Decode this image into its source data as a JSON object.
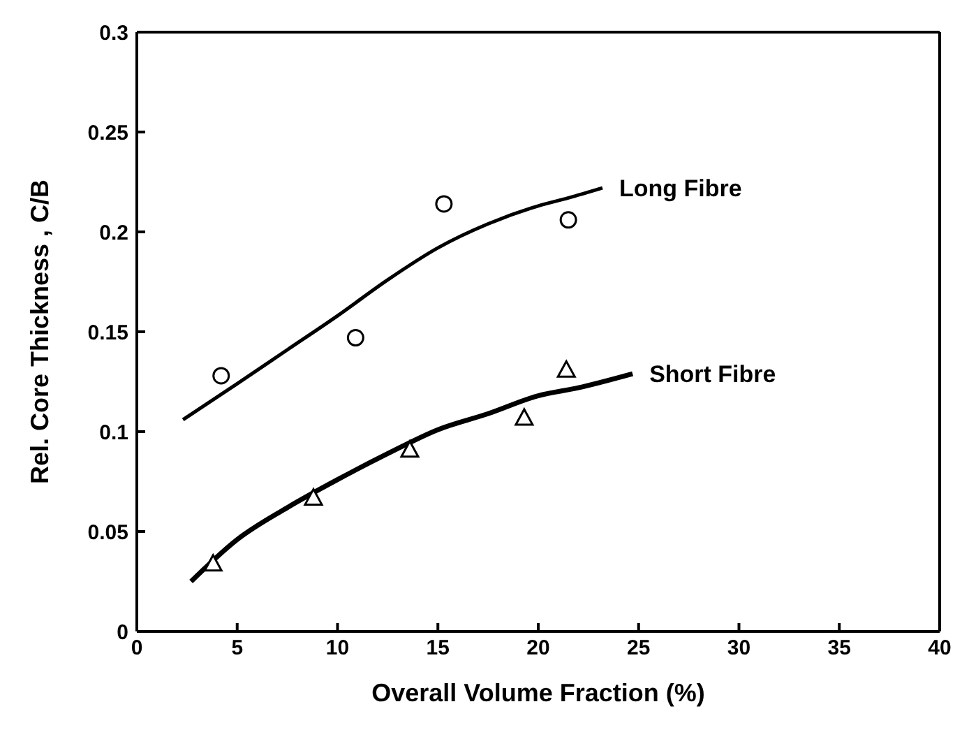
{
  "chart_data": {
    "type": "line",
    "xlabel": "Overall Volume Fraction (%)",
    "ylabel": "Rel. Core Thickness , C/B",
    "xlim": [
      0,
      40
    ],
    "xticks": [
      0,
      5,
      10,
      15,
      20,
      25,
      30,
      35,
      40
    ],
    "ylim": [
      0,
      0.3
    ],
    "yticks": [
      0,
      0.05,
      0.1,
      0.15,
      0.2,
      0.25,
      0.3
    ],
    "series": [
      {
        "name": "Long Fibre",
        "color": "#000000",
        "x": [
          2.3,
          5,
          7.5,
          10,
          12.5,
          15,
          17.5,
          20,
          21.5,
          23.2
        ],
        "values": [
          0.106,
          0.124,
          0.141,
          0.158,
          0.176,
          0.192,
          0.204,
          0.213,
          0.217,
          0.222
        ]
      },
      {
        "type": "scatter",
        "marker": "circle",
        "color": "#000000",
        "x": [
          4.2,
          10.9,
          15.3,
          21.5
        ],
        "values": [
          0.128,
          0.147,
          0.214,
          0.206
        ]
      },
      {
        "name": "Short Fibre",
        "color": "#000000",
        "x": [
          2.7,
          5,
          7.5,
          10,
          12.5,
          15,
          17.5,
          20,
          22,
          24.7
        ],
        "values": [
          0.025,
          0.046,
          0.062,
          0.076,
          0.089,
          0.101,
          0.109,
          0.118,
          0.122,
          0.129
        ]
      },
      {
        "type": "scatter",
        "marker": "triangle",
        "color": "#000000",
        "x": [
          3.8,
          8.8,
          13.6,
          19.3
        ],
        "values": [
          0.034,
          0.067,
          0.091,
          0.107
        ]
      },
      {
        "type": "scatter",
        "marker": "triangle",
        "color": "#000000",
        "x": [
          21.4
        ],
        "values": [
          0.131
        ]
      }
    ]
  }
}
